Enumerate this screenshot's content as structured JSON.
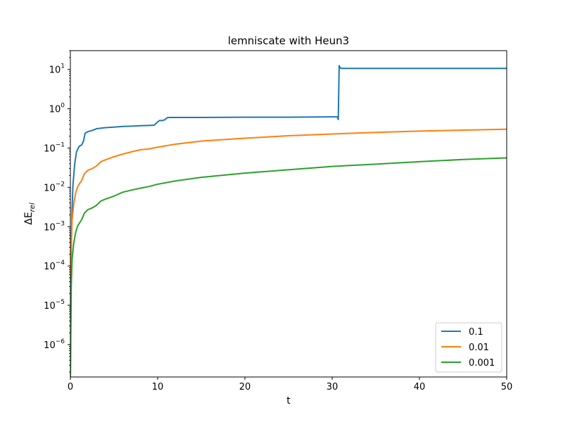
{
  "chart_data": {
    "type": "line",
    "title": "lemniscate with Heun3",
    "xlabel": "t",
    "ylabel_base": "ΔE",
    "ylabel_sub": "rel",
    "xlim": [
      0,
      50
    ],
    "ylim": [
      1.5e-07,
      30
    ],
    "yscale": "log",
    "grid": false,
    "legend_position": "lower-right",
    "x_ticks": [
      0,
      10,
      20,
      30,
      40,
      50
    ],
    "x_tick_labels": [
      "0",
      "10",
      "20",
      "30",
      "40",
      "50"
    ],
    "y_ticks": [
      1e-06,
      1e-05,
      0.0001,
      0.001,
      0.01,
      0.1,
      1,
      10
    ],
    "y_tick_base": "10",
    "y_tick_exponents": [
      "−6",
      "−5",
      "−4",
      "−3",
      "−2",
      "−1",
      "0",
      "1"
    ],
    "series": [
      {
        "name": "0.1",
        "color": "#1f77b4",
        "x": [
          0,
          0.1,
          0.2,
          0.3,
          0.5,
          0.7,
          1.0,
          1.3,
          1.5,
          1.7,
          2.0,
          2.5,
          3.0,
          3.5,
          4.0,
          5.0,
          6.0,
          7.0,
          8.0,
          9.0,
          9.6,
          9.9,
          10.2,
          10.5,
          10.8,
          11.1,
          11.4,
          12.0,
          15.0,
          20.0,
          25.0,
          30.0,
          30.6,
          30.7,
          30.8,
          30.9,
          31.0,
          31.2,
          35.0,
          40.0,
          45.0,
          50.0
        ],
        "y": [
          1.5e-07,
          0.0003,
          0.003,
          0.012,
          0.04,
          0.08,
          0.11,
          0.12,
          0.15,
          0.24,
          0.26,
          0.28,
          0.31,
          0.32,
          0.33,
          0.34,
          0.355,
          0.36,
          0.37,
          0.375,
          0.38,
          0.44,
          0.5,
          0.5,
          0.52,
          0.59,
          0.6,
          0.6,
          0.6,
          0.61,
          0.61,
          0.62,
          0.62,
          0.53,
          12.5,
          11.2,
          10.6,
          10.6,
          10.6,
          10.6,
          10.6,
          10.6
        ]
      },
      {
        "name": "0.01",
        "color": "#ff7f0e",
        "x": [
          0,
          0.1,
          0.2,
          0.4,
          0.6,
          0.8,
          1.0,
          1.3,
          1.6,
          2.0,
          2.5,
          3.0,
          3.5,
          4.0,
          5.0,
          6.0,
          7.0,
          8.0,
          9.0,
          10.0,
          12.0,
          15.0,
          20.0,
          25.0,
          30.0,
          35.0,
          40.0,
          45.0,
          50.0
        ],
        "y": [
          1.5e-07,
          0.0003,
          0.0015,
          0.004,
          0.007,
          0.01,
          0.012,
          0.015,
          0.022,
          0.027,
          0.03,
          0.035,
          0.045,
          0.05,
          0.06,
          0.07,
          0.08,
          0.09,
          0.095,
          0.105,
          0.125,
          0.15,
          0.178,
          0.205,
          0.228,
          0.25,
          0.27,
          0.285,
          0.3
        ]
      },
      {
        "name": "0.001",
        "color": "#2ca02c",
        "x": [
          0,
          0.1,
          0.2,
          0.4,
          0.6,
          0.8,
          1.0,
          1.3,
          1.6,
          2.0,
          2.5,
          3.0,
          3.5,
          4.0,
          5.0,
          6.0,
          7.0,
          8.0,
          9.0,
          10.0,
          12.0,
          15.0,
          20.0,
          25.0,
          30.0,
          35.0,
          40.0,
          45.0,
          50.0
        ],
        "y": [
          1.5e-07,
          3e-05,
          0.00015,
          0.0004,
          0.0007,
          0.001,
          0.0012,
          0.0015,
          0.0022,
          0.0027,
          0.003,
          0.0035,
          0.0045,
          0.005,
          0.006,
          0.0075,
          0.0085,
          0.0095,
          0.0105,
          0.012,
          0.0145,
          0.018,
          0.023,
          0.028,
          0.034,
          0.039,
          0.045,
          0.051,
          0.056
        ]
      }
    ]
  }
}
